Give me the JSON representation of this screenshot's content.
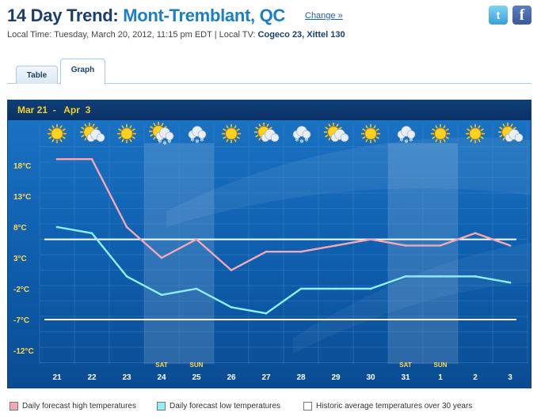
{
  "header": {
    "title_prefix": "14 Day Trend: ",
    "location": "Mont-Tremblant, QC",
    "change_label": "Change »",
    "twitter_glyph": "t",
    "facebook_glyph": "f"
  },
  "subline": {
    "local_time_label": "Local Time: Tuesday, March 20, 2012, 11:15 pm EDT",
    "separator": " | ",
    "local_tv_label": "Local TV: ",
    "local_tv_value": "Cogeco 23, Xittel 130"
  },
  "tabs": [
    {
      "label": "Table",
      "active": false
    },
    {
      "label": "Graph",
      "active": true
    }
  ],
  "range_label": "Mar 21  -   Apr  3",
  "legend": [
    {
      "label": "Daily forecast high temperatures",
      "color": "#f4a7b4"
    },
    {
      "label": "Daily forecast low temperatures",
      "color": "#8ff0f8"
    },
    {
      "label": "Historic average temperatures over 30 years",
      "color": "#ffffff"
    }
  ],
  "colors": {
    "chart_bg": "#0d5ba5",
    "high_line": "#f4a7b4",
    "low_line": "#8ff0f8",
    "avg_line": "#ffffff",
    "axis_text": "#ffd84a"
  },
  "chart_data": {
    "type": "line",
    "x": [
      "21",
      "22",
      "23",
      "24",
      "25",
      "26",
      "27",
      "28",
      "29",
      "30",
      "31",
      "1",
      "2",
      "3"
    ],
    "weekend_labels": [
      {
        "day": "24",
        "label": "SAT"
      },
      {
        "day": "25",
        "label": "SUN"
      },
      {
        "day": "31",
        "label": "SAT"
      },
      {
        "day": "1",
        "label": "SUN"
      }
    ],
    "weather_icons": [
      "sun-icon",
      "sun-cloud-icon",
      "sun-icon",
      "sun-snow-icon",
      "cloud-snow-icon",
      "sun-icon",
      "sun-cloud-icon",
      "cloud-snow-icon",
      "sun-cloud-icon",
      "sun-icon",
      "cloud-snow-icon",
      "sun-icon",
      "sun-icon",
      "sun-cloud-icon"
    ],
    "y_ticks": [
      "18°C",
      "13°C",
      "8°C",
      "3°C",
      "-2°C",
      "-7°C",
      "-12°C"
    ],
    "y_tick_values": [
      18,
      13,
      8,
      3,
      -2,
      -7,
      -12
    ],
    "ylim": [
      -15,
      21
    ],
    "series": [
      {
        "name": "Daily forecast high temperatures",
        "values": [
          19,
          19,
          8,
          3,
          6,
          1,
          4,
          4,
          5,
          6,
          5,
          5,
          7,
          5
        ]
      },
      {
        "name": "Daily forecast low temperatures",
        "values": [
          8,
          7,
          0,
          -3,
          -2,
          -5,
          -6,
          -2,
          -2,
          -2,
          0,
          0,
          0,
          -1
        ]
      }
    ],
    "historic_average": {
      "high": 6,
      "low": -7
    },
    "grid": true
  }
}
